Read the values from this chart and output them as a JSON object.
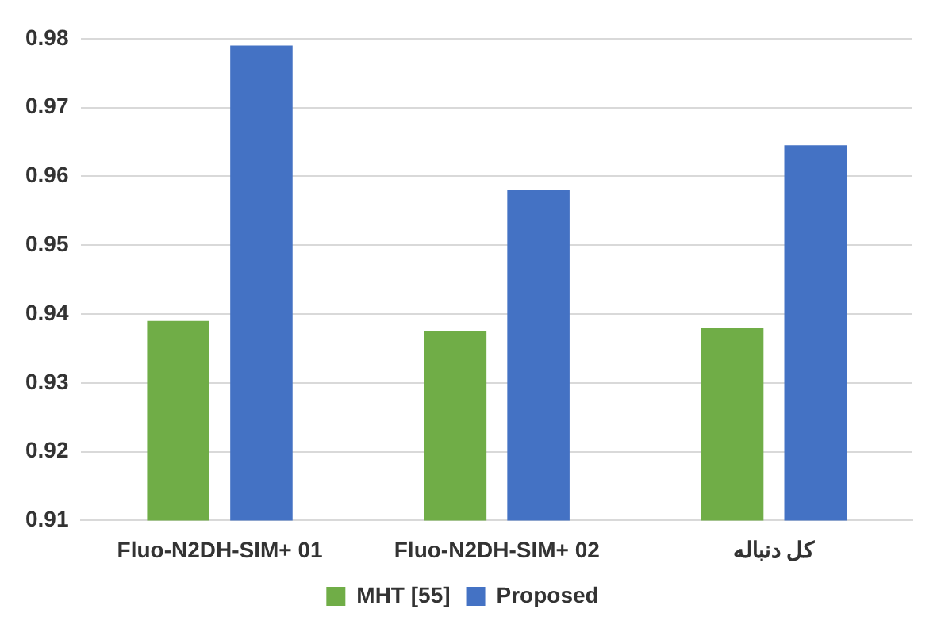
{
  "chart_data": {
    "type": "bar",
    "categories": [
      "Fluo-N2DH-SIM+ 01",
      "Fluo-N2DH-SIM+ 02",
      "کل دنباله"
    ],
    "series": [
      {
        "name": "MHT [55]",
        "color": "#70ad47",
        "values": [
          0.939,
          0.9375,
          0.938
        ]
      },
      {
        "name": "Proposed",
        "color": "#4472c4",
        "values": [
          0.979,
          0.958,
          0.9645
        ]
      }
    ],
    "ylim": [
      0.91,
      0.98
    ],
    "yticks": [
      0.91,
      0.92,
      0.93,
      0.94,
      0.95,
      0.96,
      0.97,
      0.98
    ],
    "grid": "y",
    "legend": "bottom"
  }
}
